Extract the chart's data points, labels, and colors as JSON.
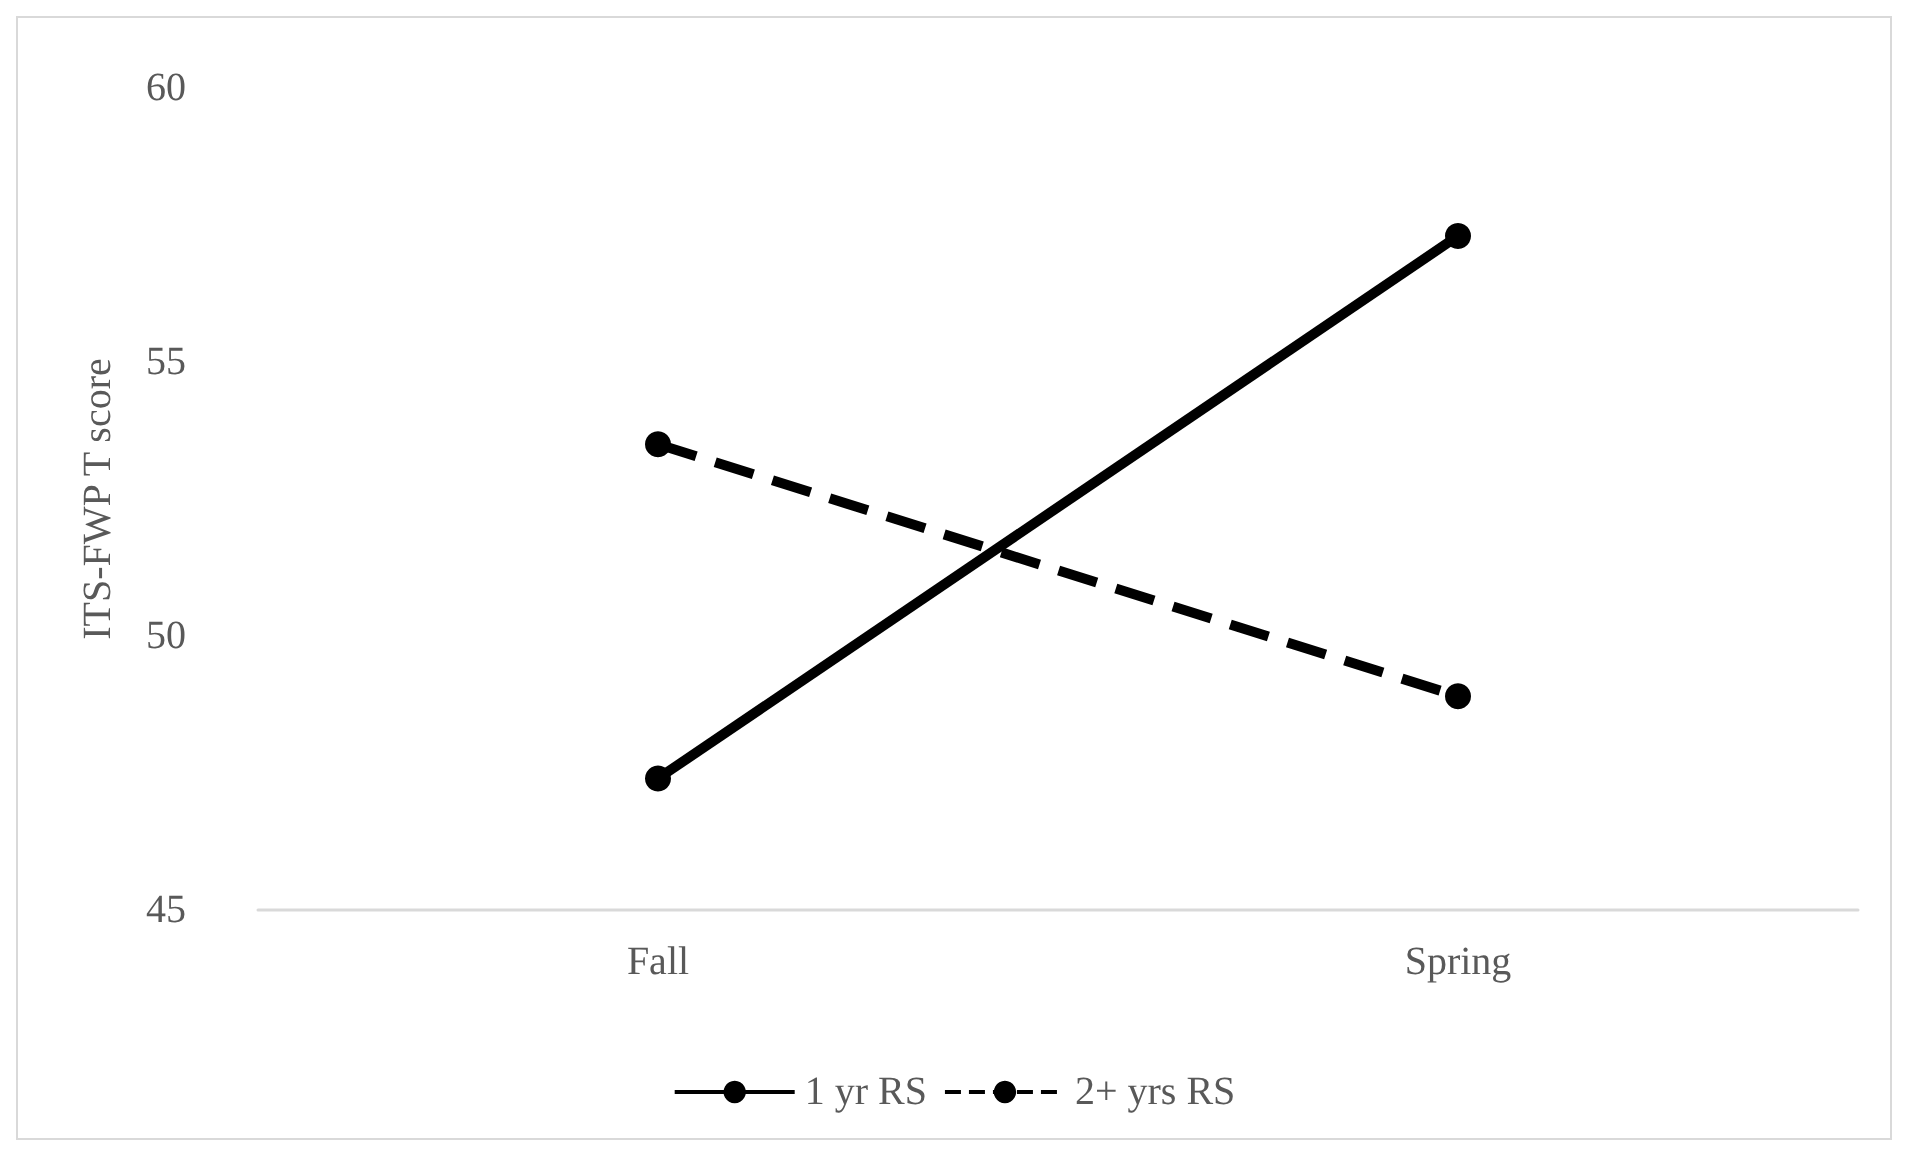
{
  "chart_data": {
    "type": "line",
    "ylabel": "ITS-FWP T score",
    "categories": [
      "Fall",
      "Spring"
    ],
    "series": [
      {
        "name": "1 yr RS",
        "color": "#000000",
        "values": [
          47.4,
          57.3
        ],
        "line_style": "solid"
      },
      {
        "name": "2+ yrs RS",
        "color": "#000000",
        "values": [
          53.5,
          48.9
        ],
        "line_style": "dashed"
      }
    ],
    "ylim": [
      45,
      60
    ],
    "yticks": [
      45,
      50,
      55,
      60
    ],
    "legend": "bottom",
    "marker": "circle",
    "grid": false
  }
}
